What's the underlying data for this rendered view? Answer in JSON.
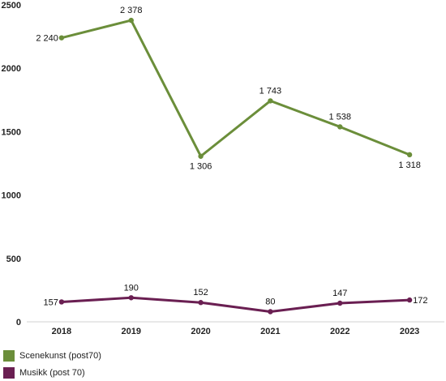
{
  "chart_data": {
    "type": "line",
    "title": "",
    "xlabel": "",
    "ylabel": "",
    "categories": [
      "2018",
      "2019",
      "2020",
      "2021",
      "2022",
      "2023"
    ],
    "ylim": [
      0,
      2500
    ],
    "yticks": [
      0,
      500,
      1000,
      1500,
      2000,
      2500
    ],
    "grid": false,
    "legend_position": "bottom-left",
    "series": [
      {
        "name": "Scenekunst (post70)",
        "color": "#6b8e3a",
        "values": [
          2240,
          2378,
          1306,
          1743,
          1538,
          1318
        ],
        "labels": [
          "2 240",
          "2 378",
          "1 306",
          "1 743",
          "1 538",
          "1 318"
        ]
      },
      {
        "name": "Musikk (post 70)",
        "color": "#6a1f52",
        "values": [
          157,
          190,
          152,
          80,
          147,
          172
        ],
        "labels": [
          "157",
          "190",
          "152",
          "80",
          "147",
          "172"
        ]
      }
    ]
  }
}
